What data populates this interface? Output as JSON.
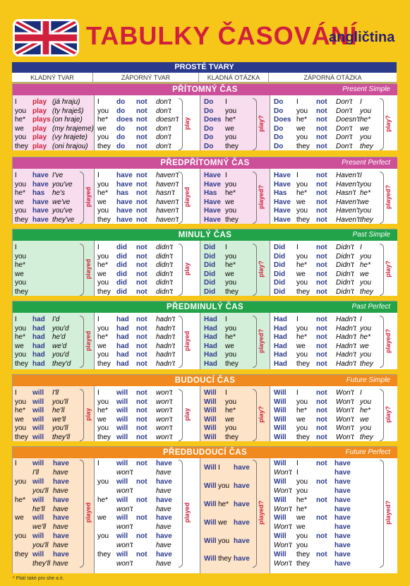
{
  "header": {
    "title": "TABULKY ČASOVÁNÍ",
    "subtitle": "angličtina"
  },
  "table": {
    "top_heading": "PROSTÉ TVARY",
    "column_headings": [
      "KLADNÝ TVAR",
      "ZÁPORNÝ TVAR",
      "KLADNÁ OTÁZKA",
      "ZÁPORNÁ OTÁZKA"
    ]
  },
  "colors": {
    "pink": "#cc4f9a",
    "pink_bg": "#f7dded",
    "green": "#22a34a",
    "green_bg": "#d4efd9",
    "orange": "#f08a1e",
    "orange_bg": "#fde3c8",
    "navy": "#2c3a8c",
    "red": "#d0203c"
  },
  "sections": [
    {
      "name": "PŘÍTOMNÝ ČAS",
      "english": "Present Simple",
      "color": "pink",
      "label_affirm": "",
      "label_neg": "play",
      "label_q": "play?",
      "label_nq": "play?",
      "affirm": [
        [
          "I",
          "play",
          "(já hraju)"
        ],
        [
          "you",
          "play",
          "(ty hraješ)"
        ],
        [
          "he*",
          "plays",
          "(on hraje)"
        ],
        [
          "we",
          "play",
          "(my hrajeme)"
        ],
        [
          "you",
          "play",
          "(vy hrajete)"
        ],
        [
          "they",
          "play",
          "(oni hrajou)"
        ]
      ],
      "neg": [
        [
          "I",
          "do",
          "not",
          "don't"
        ],
        [
          "you",
          "do",
          "not",
          "don't"
        ],
        [
          "he*",
          "does",
          "not",
          "doesn't"
        ],
        [
          "we",
          "do",
          "not",
          "don't"
        ],
        [
          "you",
          "do",
          "not",
          "don't"
        ],
        [
          "they",
          "do",
          "not",
          "don't"
        ]
      ],
      "q": [
        [
          "Do",
          "I"
        ],
        [
          "Do",
          "you"
        ],
        [
          "Does",
          "he*"
        ],
        [
          "Do",
          "we"
        ],
        [
          "Do",
          "you"
        ],
        [
          "Do",
          "they"
        ]
      ],
      "nq": [
        [
          "Do",
          "I",
          "not",
          "Don't",
          "I"
        ],
        [
          "Do",
          "you",
          "not",
          "Don't",
          "you"
        ],
        [
          "Does",
          "he*",
          "not",
          "Doesn't",
          "he*"
        ],
        [
          "Do",
          "we",
          "not",
          "Don't",
          "we"
        ],
        [
          "Do",
          "you",
          "not",
          "Don't",
          "you"
        ],
        [
          "Do",
          "they",
          "not",
          "Don't",
          "they"
        ]
      ]
    },
    {
      "name": "PŘEDPŘÍTOMNÝ ČAS",
      "english": "Present Perfect",
      "color": "pink",
      "label_affirm": "played",
      "label_neg": "played",
      "label_q": "played?",
      "label_nq": "played?",
      "affirm": [
        [
          "I",
          "have",
          "I've"
        ],
        [
          "you",
          "have",
          "you've"
        ],
        [
          "he*",
          "has",
          "he's"
        ],
        [
          "we",
          "have",
          "we've"
        ],
        [
          "you",
          "have",
          "you've"
        ],
        [
          "they",
          "have",
          "they've"
        ]
      ],
      "neg": [
        [
          "I",
          "have",
          "not",
          "haven't"
        ],
        [
          "you",
          "have",
          "not",
          "haven't"
        ],
        [
          "he*",
          "has",
          "not",
          "hasn't"
        ],
        [
          "we",
          "have",
          "not",
          "haven't"
        ],
        [
          "you",
          "have",
          "not",
          "haven't"
        ],
        [
          "they",
          "have",
          "not",
          "haven't"
        ]
      ],
      "q": [
        [
          "Have",
          "I"
        ],
        [
          "Have",
          "you"
        ],
        [
          "Has",
          "he*"
        ],
        [
          "Have",
          "we"
        ],
        [
          "Have",
          "you"
        ],
        [
          "Have",
          "they"
        ]
      ],
      "nq": [
        [
          "Have",
          "I",
          "not",
          "Haven't",
          "I"
        ],
        [
          "Have",
          "you",
          "not",
          "Haven't",
          "you"
        ],
        [
          "Has",
          "he*",
          "not",
          "Hasn't",
          "he*"
        ],
        [
          "Have",
          "we",
          "not",
          "Haven't",
          "we"
        ],
        [
          "Have",
          "you",
          "not",
          "Haven't",
          "you"
        ],
        [
          "Have",
          "they",
          "not",
          "Haven't",
          "they"
        ]
      ]
    },
    {
      "name": "MINULÝ ČAS",
      "english": "Past Simple",
      "color": "green",
      "label_affirm": "played",
      "label_neg": "play",
      "label_q": "play?",
      "label_nq": "play?",
      "affirm": [
        [
          "I",
          "",
          ""
        ],
        [
          "you",
          "",
          ""
        ],
        [
          "he*",
          "",
          ""
        ],
        [
          "we",
          "",
          ""
        ],
        [
          "you",
          "",
          ""
        ],
        [
          "they",
          "",
          ""
        ]
      ],
      "neg": [
        [
          "I",
          "did",
          "not",
          "didn't"
        ],
        [
          "you",
          "did",
          "not",
          "didn't"
        ],
        [
          "he*",
          "did",
          "not",
          "didn't"
        ],
        [
          "we",
          "did",
          "not",
          "didn't"
        ],
        [
          "you",
          "did",
          "not",
          "didn't"
        ],
        [
          "they",
          "did",
          "not",
          "didn't"
        ]
      ],
      "q": [
        [
          "Did",
          "I"
        ],
        [
          "Did",
          "you"
        ],
        [
          "Did",
          "he*"
        ],
        [
          "Did",
          "we"
        ],
        [
          "Did",
          "you"
        ],
        [
          "Did",
          "they"
        ]
      ],
      "nq": [
        [
          "Did",
          "I",
          "not",
          "Didn't",
          "I"
        ],
        [
          "Did",
          "you",
          "not",
          "Didn't",
          "you"
        ],
        [
          "Did",
          "he*",
          "not",
          "Didn't",
          "he*"
        ],
        [
          "Did",
          "we",
          "not",
          "Didn't",
          "we"
        ],
        [
          "Did",
          "you",
          "not",
          "Didn't",
          "you"
        ],
        [
          "Did",
          "they",
          "not",
          "Didn't",
          "they"
        ]
      ]
    },
    {
      "name": "PŘEDMINULÝ ČAS",
      "english": "Past Perfect",
      "color": "green",
      "label_affirm": "played",
      "label_neg": "played",
      "label_q": "played?",
      "label_nq": "played?",
      "affirm": [
        [
          "I",
          "had",
          "I'd"
        ],
        [
          "you",
          "had",
          "you'd"
        ],
        [
          "he*",
          "had",
          "he'd"
        ],
        [
          "we",
          "had",
          "we'd"
        ],
        [
          "you",
          "had",
          "you'd"
        ],
        [
          "they",
          "had",
          "they'd"
        ]
      ],
      "neg": [
        [
          "I",
          "had",
          "not",
          "hadn't"
        ],
        [
          "you",
          "had",
          "not",
          "hadn't"
        ],
        [
          "he*",
          "had",
          "not",
          "hadn't"
        ],
        [
          "we",
          "had",
          "not",
          "hadn't"
        ],
        [
          "you",
          "had",
          "not",
          "hadn't"
        ],
        [
          "they",
          "had",
          "not",
          "hadn't"
        ]
      ],
      "q": [
        [
          "Had",
          "I"
        ],
        [
          "Had",
          "you"
        ],
        [
          "Had",
          "he*"
        ],
        [
          "Had",
          "we"
        ],
        [
          "Had",
          "you"
        ],
        [
          "Had",
          "they"
        ]
      ],
      "nq": [
        [
          "Had",
          "I",
          "not",
          "Hadn't",
          "I"
        ],
        [
          "Had",
          "you",
          "not",
          "Hadn't",
          "you"
        ],
        [
          "Had",
          "he*",
          "not",
          "Hadn't",
          "he*"
        ],
        [
          "Had",
          "we",
          "not",
          "Hadn't",
          "we"
        ],
        [
          "Had",
          "you",
          "not",
          "Hadn't",
          "you"
        ],
        [
          "Had",
          "they",
          "not",
          "Hadn't",
          "they"
        ]
      ]
    },
    {
      "name": "BUDOUCÍ ČAS",
      "english": "Future Simple",
      "color": "orange",
      "label_affirm": "play",
      "label_neg": "play",
      "label_q": "play?",
      "label_nq": "play?",
      "affirm": [
        [
          "I",
          "will",
          "I'll"
        ],
        [
          "you",
          "will",
          "you'll"
        ],
        [
          "he*",
          "will",
          "he'll"
        ],
        [
          "we",
          "will",
          "we'll"
        ],
        [
          "you",
          "will",
          "you'll"
        ],
        [
          "they",
          "will",
          "they'll"
        ]
      ],
      "neg": [
        [
          "I",
          "will",
          "not",
          "won't"
        ],
        [
          "you",
          "will",
          "not",
          "won't"
        ],
        [
          "he*",
          "will",
          "not",
          "won't"
        ],
        [
          "we",
          "will",
          "not",
          "won't"
        ],
        [
          "you",
          "will",
          "not",
          "won't"
        ],
        [
          "they",
          "will",
          "not",
          "won't"
        ]
      ],
      "q": [
        [
          "Will",
          "I"
        ],
        [
          "Will",
          "you"
        ],
        [
          "Will",
          "he*"
        ],
        [
          "Will",
          "we"
        ],
        [
          "Will",
          "you"
        ],
        [
          "Will",
          "they"
        ]
      ],
      "nq": [
        [
          "Will",
          "I",
          "not",
          "Won't",
          "I"
        ],
        [
          "Will",
          "you",
          "not",
          "Won't",
          "you"
        ],
        [
          "Will",
          "he*",
          "not",
          "Won't",
          "he*"
        ],
        [
          "Will",
          "we",
          "not",
          "Won't",
          "we"
        ],
        [
          "Will",
          "you",
          "not",
          "Won't",
          "you"
        ],
        [
          "Will",
          "they",
          "not",
          "Won't",
          "they"
        ]
      ]
    },
    {
      "name": "PŘEDBUDOUCÍ ČAS",
      "english": "Future Perfect",
      "color": "orange",
      "label_affirm": "played",
      "label_neg": "played",
      "label_q": "played?",
      "label_nq": "played?",
      "affirm2": [
        [
          "I",
          "will",
          "have"
        ],
        [
          "",
          "I'll",
          "have"
        ],
        [
          "you",
          "will",
          "have"
        ],
        [
          "",
          "you'll",
          "have"
        ],
        [
          "he*",
          "will",
          "have"
        ],
        [
          "",
          "he'll",
          "have"
        ],
        [
          "we",
          "will",
          "have"
        ],
        [
          "",
          "we'll",
          "have"
        ],
        [
          "you",
          "will",
          "have"
        ],
        [
          "",
          "you'll",
          "have"
        ],
        [
          "they",
          "will",
          "have"
        ],
        [
          "",
          "they'll",
          "have"
        ]
      ],
      "neg2": [
        [
          "I",
          "will",
          "not",
          "have"
        ],
        [
          "",
          "won't",
          "",
          "have"
        ],
        [
          "you",
          "will",
          "not",
          "have"
        ],
        [
          "",
          "won't",
          "",
          "have"
        ],
        [
          "he*",
          "will",
          "not",
          "have"
        ],
        [
          "",
          "won't",
          "",
          "have"
        ],
        [
          "we",
          "will",
          "not",
          "have"
        ],
        [
          "",
          "won't",
          "",
          "have"
        ],
        [
          "you",
          "will",
          "not",
          "have"
        ],
        [
          "",
          "won't",
          "",
          "have"
        ],
        [
          "they",
          "will",
          "not",
          "have"
        ],
        [
          "",
          "won't",
          "",
          "have"
        ]
      ],
      "q2": [
        [
          "Will",
          "I",
          "have"
        ],
        [
          "Will",
          "you",
          "have"
        ],
        [
          "Will",
          "he*",
          "have"
        ],
        [
          "Will",
          "we",
          "have"
        ],
        [
          "Will",
          "you",
          "have"
        ],
        [
          "Will",
          "they",
          "have"
        ]
      ],
      "nq2": [
        [
          "Will",
          "I",
          "not",
          "have"
        ],
        [
          "Won't",
          "I",
          "",
          "have"
        ],
        [
          "Will",
          "you",
          "not",
          "have"
        ],
        [
          "Won't",
          "you",
          "",
          "have"
        ],
        [
          "Will",
          "he*",
          "not",
          "have"
        ],
        [
          "Won't",
          "he*",
          "",
          "have"
        ],
        [
          "Will",
          "we",
          "not",
          "have"
        ],
        [
          "Won't",
          "we",
          "",
          "have"
        ],
        [
          "Will",
          "you",
          "not",
          "have"
        ],
        [
          "Won't",
          "you",
          "",
          "have"
        ],
        [
          "Will",
          "they",
          "not",
          "have"
        ],
        [
          "Won't",
          "they",
          "",
          "have"
        ]
      ]
    }
  ],
  "footnote": "* Platí také pro she a it."
}
